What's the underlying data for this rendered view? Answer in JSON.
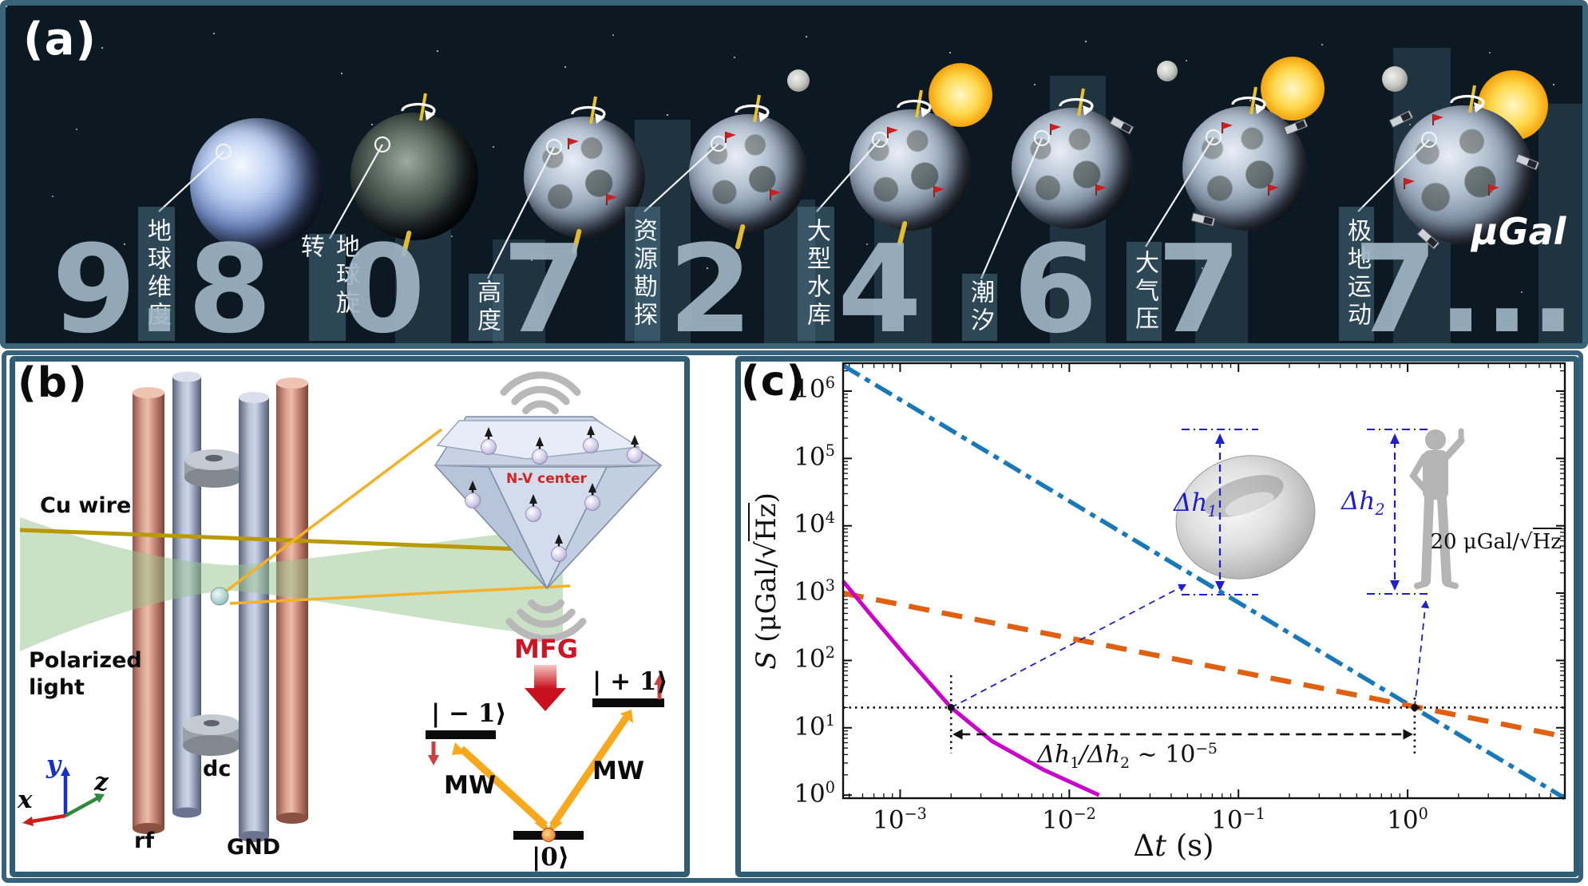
{
  "panel_a": {
    "tag": "(a)",
    "unit": "μGal",
    "segments": [
      {
        "digit": "9.",
        "label": "地球维度"
      },
      {
        "digit": "8",
        "label": "地球旋转"
      },
      {
        "digit": "0",
        "label": "高度"
      },
      {
        "digit": "7",
        "label": "资源勘探"
      },
      {
        "digit": "2",
        "label": "大型水库"
      },
      {
        "digit": "4",
        "label": "潮汐"
      },
      {
        "digit": "6",
        "label": "大气压"
      },
      {
        "digit": "7",
        "label": "极地运动"
      },
      {
        "digit": "7..."
      }
    ]
  },
  "panel_b": {
    "tag": "(b)",
    "labels": {
      "cu_wire": "Cu wire",
      "polarized": "Polarized",
      "light": "light",
      "rf": "rf",
      "dc": "dc",
      "gnd": "GND",
      "ax_x": "x",
      "ax_y": "y",
      "ax_z": "z",
      "nv_center": "N-V center",
      "mfg": "MFG",
      "mw_left": "MW",
      "mw_right": "MW",
      "level_minus": "| − 1⟩",
      "level_plus": "| + 1⟩",
      "level_zero": "|0⟩"
    }
  },
  "panel_c": {
    "tag": "(c)",
    "tick_base": "10",
    "x_tick_exps": [
      "−3",
      "−2",
      "−1",
      "0"
    ],
    "y_tick_exps": [
      "0",
      "1",
      "2",
      "3",
      "4",
      "5",
      "6"
    ],
    "ylabel_parts": {
      "s": "S",
      "mid": " (μGal/",
      "sqrt": "√",
      "hz": "Hz",
      "close": ")"
    },
    "xlabel_parts": {
      "delta": "Δ",
      "t": "t",
      "rest": " (s)"
    },
    "sens_parts": {
      "val": "20 ",
      "unit": "μGal/",
      "sqrt": "√",
      "hz": "Hz"
    },
    "ratio_parts": {
      "a": "Δh",
      "a_sub": "1",
      "b": "/Δh",
      "b_sub": "2",
      "c": " ∼ 10",
      "exp": "−5"
    },
    "dh1_parts": {
      "base": "Δh",
      "sub": "1"
    },
    "dh2_parts": {
      "base": "Δh",
      "sub": "2"
    }
  },
  "chart_data": {
    "type": "line",
    "title": "",
    "xlabel": "Δt (s)",
    "ylabel": "S (μGal/√Hz)",
    "xscale": "log",
    "yscale": "log",
    "xlim": [
      0.00046,
      8.5
    ],
    "ylim": [
      0.9,
      2600000
    ],
    "x_ticks": [
      0.001,
      0.01,
      0.1,
      1
    ],
    "y_ticks": [
      1,
      10,
      100,
      1000,
      10000,
      100000,
      1000000
    ],
    "grid": false,
    "legend": "none",
    "series": [
      {
        "name": "blue-dashdot-line",
        "color": "#1878b8",
        "style": "dashdot",
        "points": [
          [
            0.00046,
            2400000
          ],
          [
            8.5,
            0.9
          ]
        ]
      },
      {
        "name": "orange-dashed-line",
        "color": "#e06010",
        "style": "dashed",
        "points": [
          [
            0.00046,
            1000
          ],
          [
            8.5,
            7.4
          ]
        ]
      },
      {
        "name": "magenta-solid-curve",
        "color": "#cc00cc",
        "style": "solid",
        "points": [
          [
            0.00046,
            1500
          ],
          [
            0.0007,
            420
          ],
          [
            0.0011,
            110
          ],
          [
            0.002,
            20
          ],
          [
            0.0035,
            6.3
          ],
          [
            0.007,
            2.4
          ],
          [
            0.015,
            1.0
          ]
        ]
      }
    ],
    "annotations": {
      "sensitivity_line_y": 20,
      "sensitivity_label": "20 μGal/√Hz",
      "marker1": {
        "x": 0.002,
        "y": 20
      },
      "marker2": {
        "x": 1.1,
        "y": 20
      },
      "ratio_arrow_y": 8,
      "ratio_label": "Δh1/Δh2 ~ 10^-5",
      "dh1_label": "Δh1",
      "dh2_label": "Δh2"
    }
  }
}
